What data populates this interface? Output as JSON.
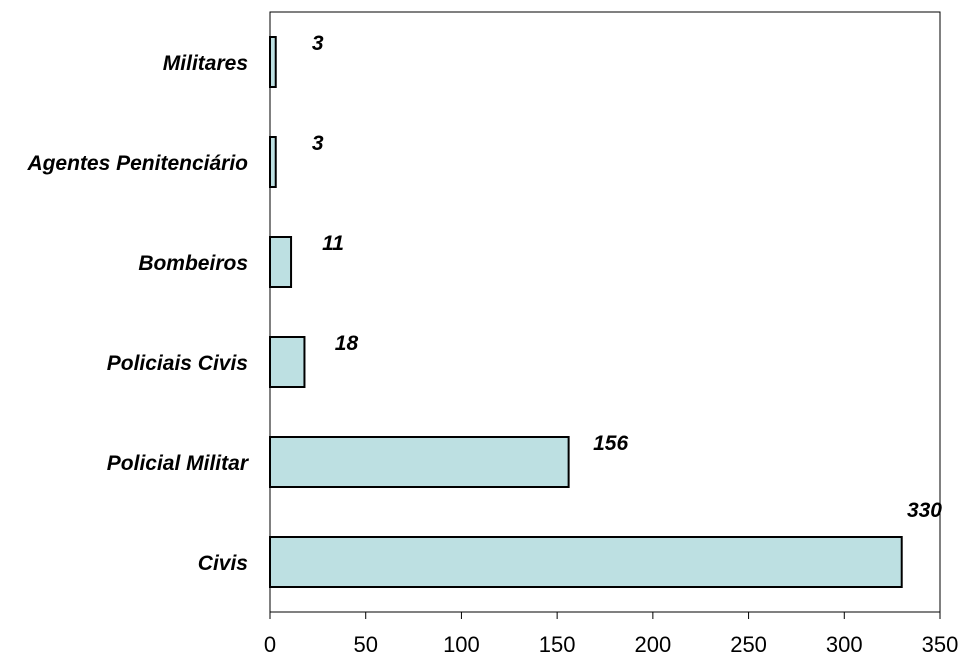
{
  "chart_data": {
    "type": "bar",
    "orientation": "horizontal",
    "title": "",
    "xlabel": "",
    "ylabel": "",
    "categories": [
      "Civis",
      "Policial Militar",
      "Policiais Civis",
      "Bombeiros",
      "Agentes Penitenciário",
      "Militares"
    ],
    "values": [
      330,
      156,
      18,
      11,
      3,
      3
    ],
    "data_labels": [
      "330",
      "156",
      "18",
      "11",
      "3",
      "3"
    ],
    "xlim": [
      0,
      350
    ],
    "xticks": [
      0,
      50,
      100,
      150,
      200,
      250,
      300,
      350
    ],
    "xtick_labels": [
      "0",
      "50",
      "100",
      "150",
      "200",
      "250",
      "300",
      "350"
    ],
    "grid": false,
    "legend": "none",
    "colors": {
      "bar_fill": "#bde0e2",
      "bar_stroke": "#000000",
      "axis": "#000000"
    }
  }
}
